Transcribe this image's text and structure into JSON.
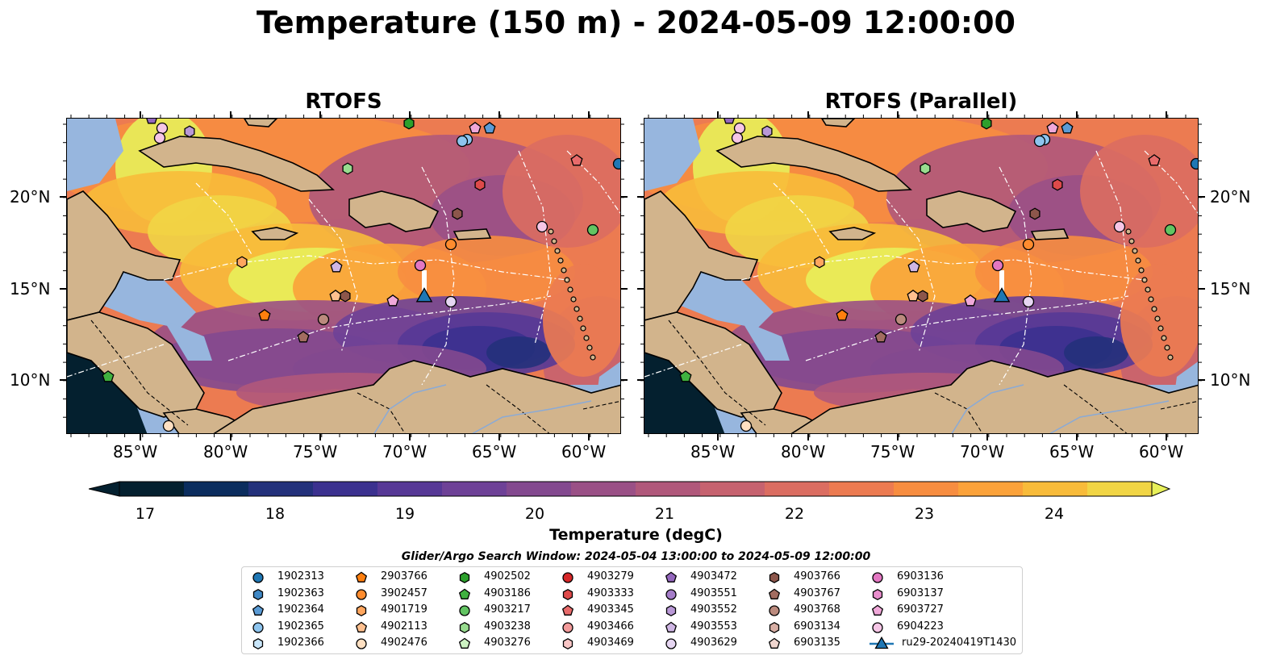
{
  "title": "Temperature (150 m) - 2024-05-09 12:00:00",
  "panels": [
    {
      "title": "RTOFS"
    },
    {
      "title": "RTOFS (Parallel)"
    }
  ],
  "axes": {
    "lon_labels": [
      "85°W",
      "80°W",
      "75°W",
      "70°W",
      "65°W",
      "60°W"
    ],
    "lat_labels": [
      "20°N",
      "15°N",
      "10°N"
    ]
  },
  "colorbar": {
    "label": "Temperature (degC)",
    "ticks": [
      "17",
      "18",
      "19",
      "20",
      "21",
      "22",
      "23",
      "24"
    ],
    "colors": [
      "#04202f",
      "#0b2d5e",
      "#23317b",
      "#3b318f",
      "#573896",
      "#6e4197",
      "#83498f",
      "#9a5086",
      "#b0587b",
      "#c6626f",
      "#db6d61",
      "#ec7b51",
      "#f78d40",
      "#fba23a",
      "#f8bb3a",
      "#f1d545",
      "#e8f05a"
    ]
  },
  "search_window": "Glider/Argo Search Window: 2024-05-04 13:00:00 to 2024-05-09 12:00:00",
  "legend": {
    "columns": [
      [
        {
          "label": "1902313",
          "marker": "circle",
          "color": "#1f77b4"
        },
        {
          "label": "1902363",
          "marker": "hexagon",
          "color": "#3f88c5"
        },
        {
          "label": "1902364",
          "marker": "pentagon",
          "color": "#5a9bd5"
        },
        {
          "label": "1902365",
          "marker": "circle",
          "color": "#8dc4ee"
        },
        {
          "label": "1902366",
          "marker": "hexagon",
          "color": "#c9e6fa"
        }
      ],
      [
        {
          "label": "2903766",
          "marker": "pentagon",
          "color": "#ff7f0e"
        },
        {
          "label": "3902457",
          "marker": "circle",
          "color": "#ff8c2e"
        },
        {
          "label": "4901719",
          "marker": "hexagon",
          "color": "#ffa65e"
        },
        {
          "label": "4902113",
          "marker": "pentagon",
          "color": "#ffc08f"
        },
        {
          "label": "4902476",
          "marker": "circle",
          "color": "#ffe0c2"
        }
      ],
      [
        {
          "label": "4902502",
          "marker": "hexagon",
          "color": "#2ca02c"
        },
        {
          "label": "4903186",
          "marker": "pentagon",
          "color": "#3fb13f"
        },
        {
          "label": "4903217",
          "marker": "circle",
          "color": "#62c462"
        },
        {
          "label": "4903238",
          "marker": "hexagon",
          "color": "#98dc8f"
        },
        {
          "label": "4903276",
          "marker": "pentagon",
          "color": "#cdf2c2"
        }
      ],
      [
        {
          "label": "4903279",
          "marker": "circle",
          "color": "#d62728"
        },
        {
          "label": "4903333",
          "marker": "hexagon",
          "color": "#de4a4a"
        },
        {
          "label": "4903345",
          "marker": "pentagon",
          "color": "#e86b6b"
        },
        {
          "label": "4903466",
          "marker": "circle",
          "color": "#f29a9a"
        },
        {
          "label": "4903469",
          "marker": "hexagon",
          "color": "#f9c6c6"
        }
      ],
      [
        {
          "label": "4903472",
          "marker": "pentagon",
          "color": "#9467bd"
        },
        {
          "label": "4903551",
          "marker": "circle",
          "color": "#a57dc9"
        },
        {
          "label": "4903552",
          "marker": "hexagon",
          "color": "#b998d6"
        },
        {
          "label": "4903553",
          "marker": "pentagon",
          "color": "#cfb6e4"
        },
        {
          "label": "4903629",
          "marker": "circle",
          "color": "#e6d6f2"
        }
      ],
      [
        {
          "label": "4903766",
          "marker": "hexagon",
          "color": "#8c564b"
        },
        {
          "label": "4903767",
          "marker": "pentagon",
          "color": "#a26c60"
        },
        {
          "label": "4903768",
          "marker": "circle",
          "color": "#bb8a7d"
        },
        {
          "label": "6903134",
          "marker": "hexagon",
          "color": "#d7aea4"
        },
        {
          "label": "6903135",
          "marker": "pentagon",
          "color": "#f0d6cf"
        }
      ],
      [
        {
          "label": "6903136",
          "marker": "circle",
          "color": "#e377c2"
        },
        {
          "label": "6903137",
          "marker": "hexagon",
          "color": "#e98ecd"
        },
        {
          "label": "6903727",
          "marker": "pentagon",
          "color": "#f0a8d9"
        },
        {
          "label": "6904223",
          "marker": "circle",
          "color": "#f6c6e6"
        },
        {
          "label": "ru29-20240419T1430",
          "marker": "triangle-line",
          "color": "#1f77b4"
        }
      ]
    ]
  },
  "map_colors": {
    "land": "#d2b48c",
    "shelf": "#97b6de",
    "deep": "#04202f"
  }
}
